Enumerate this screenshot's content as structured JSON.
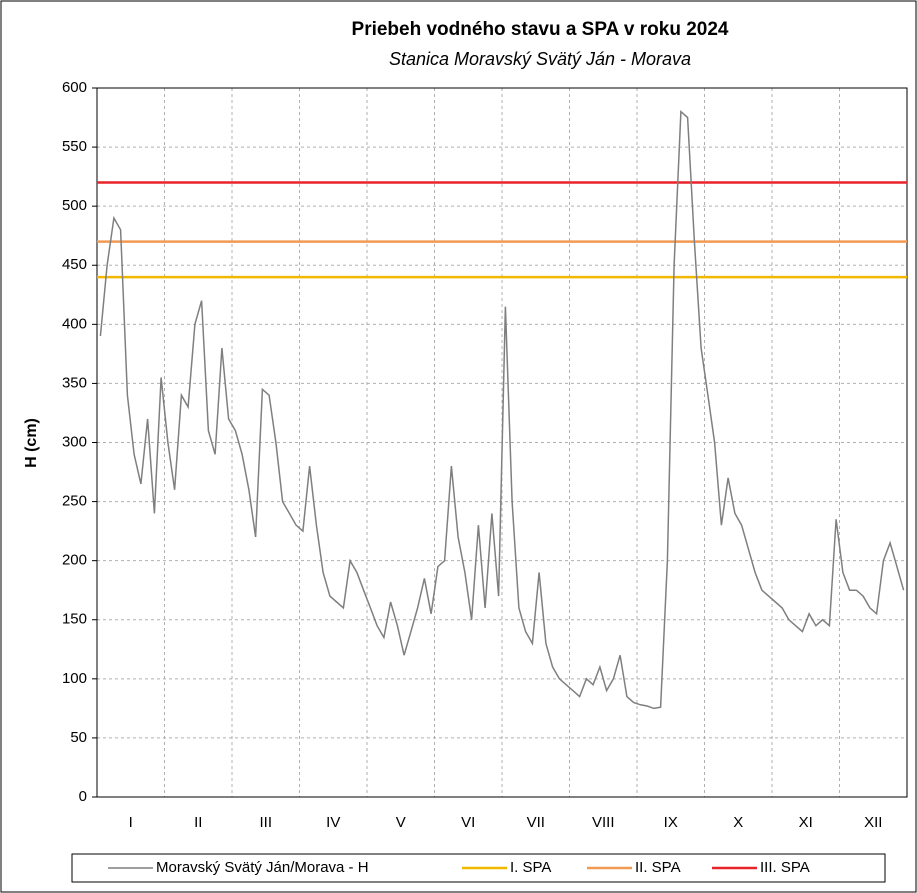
{
  "chart_data": {
    "type": "line",
    "title": "Priebeh vodného stavu a SPA v roku 2024",
    "subtitle": "Stanica Moravský Svätý Ján - Morava",
    "y_label": "H (cm)",
    "categories": [
      "I",
      "II",
      "III",
      "IV",
      "V",
      "VI",
      "VII",
      "VIII",
      "IX",
      "X",
      "XI",
      "XII"
    ],
    "ylim": [
      0,
      600
    ],
    "yticks": [
      0,
      50,
      100,
      150,
      200,
      250,
      300,
      350,
      400,
      450,
      500,
      550,
      600
    ],
    "grid": true,
    "series": [
      {
        "name": "Moravský Svätý Ján/Morava - H",
        "color": "#7f7f7f",
        "values": [
          [
            390,
            450,
            490,
            480,
            340,
            290,
            265,
            320,
            240,
            355
          ],
          [
            300,
            260,
            340,
            330,
            400,
            420,
            310,
            290,
            380,
            320
          ],
          [
            310,
            290,
            260,
            220,
            345,
            340,
            300,
            250,
            240,
            230
          ],
          [
            225,
            280,
            230,
            190,
            170,
            165,
            160,
            200,
            190,
            175
          ],
          [
            160,
            145,
            135,
            165,
            145,
            120,
            140,
            160,
            185,
            155
          ],
          [
            195,
            200,
            280,
            220,
            190,
            150,
            230,
            160,
            240,
            170
          ],
          [
            415,
            250,
            160,
            140,
            130,
            190,
            130,
            110,
            100,
            95
          ],
          [
            90,
            85,
            100,
            95,
            110,
            90,
            100,
            120,
            85,
            80
          ],
          [
            78,
            77,
            75,
            76,
            200,
            450,
            580,
            575,
            470,
            380
          ],
          [
            340,
            300,
            230,
            270,
            240,
            230,
            210,
            190,
            175,
            170
          ],
          [
            165,
            160,
            150,
            145,
            140,
            155,
            145,
            150,
            145,
            235
          ],
          [
            190,
            175,
            175,
            170,
            160,
            155,
            200,
            215,
            195,
            175
          ]
        ]
      }
    ],
    "reference_lines": [
      {
        "name": "I. SPA",
        "color": "#f2b800",
        "value": 440
      },
      {
        "name": "II. SPA",
        "color": "#f29a52",
        "value": 470
      },
      {
        "name": "III. SPA",
        "color": "#e8242a",
        "value": 520
      }
    ]
  }
}
